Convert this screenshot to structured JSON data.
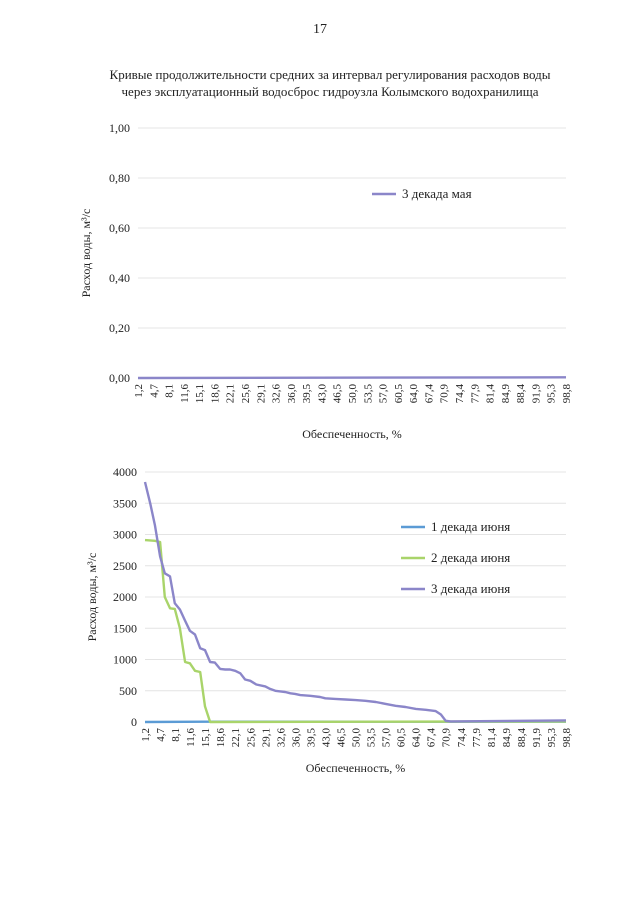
{
  "page_number": "17",
  "title": {
    "line1": "Кривые продолжительности средних за интервал регулирования расходов воды",
    "line2": "через эксплуатационный водосброс гидроузла Колымского водохранилища"
  },
  "colors": {
    "series_may": "#8b86c9",
    "series_june1": "#5b9bd5",
    "series_june2": "#a9d46a",
    "series_june3": "#8b86c9",
    "grid": "#e4e4e4",
    "axis": "#bdbdbd"
  },
  "chart_data": [
    {
      "type": "line",
      "xlabel": "Обеспеченность, %",
      "ylabel": "Расход воды, м³/с",
      "ylim": [
        0,
        1.0
      ],
      "y_ticks": [
        "0,00",
        "0,20",
        "0,40",
        "0,60",
        "0,80",
        "1,00"
      ],
      "x_tick_labels": [
        "1,2",
        "4,7",
        "8,1",
        "11,6",
        "15,1",
        "18,6",
        "22,1",
        "25,6",
        "29,1",
        "32,6",
        "36,0",
        "39,5",
        "43,0",
        "46,5",
        "50,0",
        "53,5",
        "57,0",
        "60,5",
        "64,0",
        "67,4",
        "70,9",
        "74,4",
        "77,9",
        "81,4",
        "84,9",
        "88,4",
        "91,9",
        "95,3",
        "98,8"
      ],
      "series": [
        {
          "name": "3 декада мая",
          "color": "#8b86c9",
          "x": [
            1.2,
            98.8
          ],
          "values": [
            0.0,
            0.003
          ]
        }
      ],
      "legend_position": "right"
    },
    {
      "type": "line",
      "xlabel": "Обеспеченность, %",
      "ylabel": "Расход воды, м³/с",
      "ylim": [
        0,
        4000
      ],
      "y_ticks": [
        "0",
        "500",
        "1000",
        "1500",
        "2000",
        "2500",
        "3000",
        "3500",
        "4000"
      ],
      "x_tick_labels": [
        "1,2",
        "4,7",
        "8,1",
        "11,6",
        "15,1",
        "18,6",
        "22,1",
        "25,6",
        "29,1",
        "32,6",
        "36,0",
        "39,5",
        "43,0",
        "46,5",
        "50,0",
        "53,5",
        "57,0",
        "60,5",
        "64,0",
        "67,4",
        "70,9",
        "74,4",
        "77,9",
        "81,4",
        "84,9",
        "88,4",
        "91,9",
        "95,3",
        "98,8"
      ],
      "series": [
        {
          "name": "1 декада июня",
          "color": "#5b9bd5",
          "x": [
            1.2,
            15.1,
            98.8
          ],
          "values": [
            0,
            5,
            5
          ]
        },
        {
          "name": "2 декада июня",
          "color": "#a9d46a",
          "x": [
            1.2,
            3.5,
            4.7,
            5.8,
            7.0,
            8.1,
            9.3,
            10.5,
            11.6,
            12.8,
            14.0,
            15.1,
            16.3,
            98.8
          ],
          "values": [
            2910,
            2900,
            2880,
            2000,
            1820,
            1810,
            1500,
            960,
            940,
            820,
            800,
            250,
            0,
            10
          ]
        },
        {
          "name": "3 декада июня",
          "color": "#8b86c9",
          "x": [
            1.2,
            2.4,
            3.5,
            4.7,
            5.8,
            7.0,
            8.1,
            9.3,
            10.5,
            11.6,
            12.8,
            14.0,
            15.1,
            16.3,
            17.4,
            18.6,
            19.8,
            20.9,
            22.1,
            23.3,
            24.4,
            25.6,
            27.0,
            29.1,
            30.2,
            31.4,
            32.6,
            33.7,
            34.9,
            36.0,
            37.2,
            39.5,
            41.8,
            43.0,
            45.3,
            47.7,
            50.0,
            52.3,
            54.7,
            57.0,
            59.3,
            61.6,
            64.0,
            66.3,
            68.6,
            69.8,
            70.9,
            72.1,
            98.8
          ],
          "values": [
            3840,
            3500,
            3150,
            2650,
            2380,
            2330,
            1900,
            1800,
            1620,
            1460,
            1400,
            1180,
            1150,
            960,
            950,
            850,
            840,
            840,
            820,
            780,
            680,
            660,
            600,
            570,
            530,
            500,
            490,
            480,
            460,
            450,
            430,
            420,
            400,
            380,
            370,
            360,
            350,
            340,
            320,
            290,
            260,
            240,
            210,
            195,
            175,
            120,
            20,
            10,
            25
          ]
        }
      ],
      "legend_position": "right"
    }
  ]
}
